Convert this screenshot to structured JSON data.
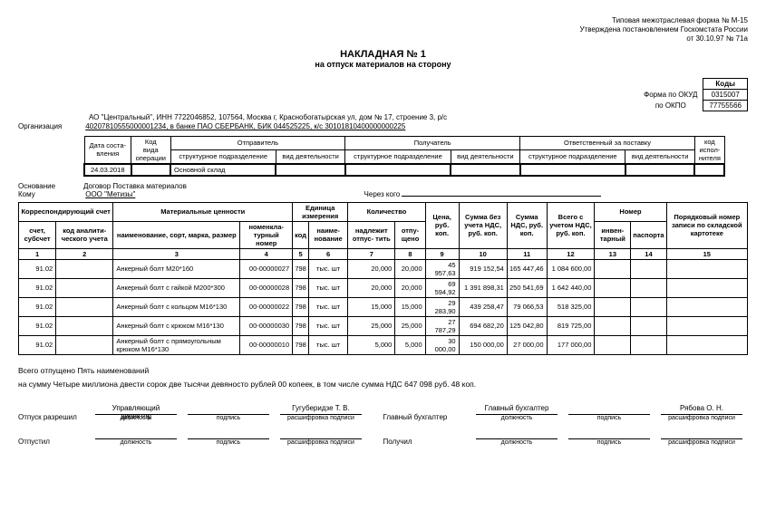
{
  "topRight": {
    "l1": "Типовая межотраслевая форма № М-15",
    "l2": "Утверждена постановлением Госкомстата России",
    "l3": "от 30.10.97 № 71а"
  },
  "title": "НАКЛАДНАЯ № 1",
  "subtitle": "на отпуск материалов на сторону",
  "codes": {
    "hdr": "Коды",
    "okudLabel": "Форма по ОКУД",
    "okud": "0315007",
    "okpoLabel": "по ОКПО",
    "okpo": "77755566"
  },
  "org": {
    "line1": "АО \"Центральный\", ИНН 7722046852, 107564, Москва г, Краснобогатырская ул, дом № 17, строение 3, р/с",
    "line2Label": "Организация",
    "line2": "40207810555000001234, в банке ПАО СБЕРБАНК, БИК 044525225, к/с 30101810400000000225"
  },
  "hdrTable": {
    "c1a": "Дата соста-",
    "c1b": "вления",
    "c2a": "Код",
    "c2b": "вида",
    "c2c": "операции",
    "grp1": "Отправитель",
    "grp2": "Получатель",
    "grp3": "Ответственный за поставку",
    "sub1": "структурное подразделение",
    "sub2": "вид деятельности",
    "c9a": "код",
    "c9b": "испол-",
    "c9c": "нителя",
    "date": "24.03.2018",
    "sender": "Основной склад"
  },
  "meta": {
    "osnLabel": "Основание",
    "osn": "Договор Поставка материалов",
    "komuLabel": "Кому",
    "komu": "ООО \"Метизы\"",
    "cherezLabel": "Через кого"
  },
  "cols": {
    "g1": "Корреспондирующий счет",
    "g1a": "счет, субсчет",
    "g1b": "код аналити- ческого учета",
    "g2": "Материальные ценности",
    "g2a": "наименование, сорт, марка, размер",
    "g2b": "номенкла- турный номер",
    "g3": "Единица измерения",
    "g3a": "код",
    "g3b": "наиме- нование",
    "g4": "Количество",
    "g4a": "надлежит отпус- тить",
    "g4b": "отпу- щено",
    "c9": "Цена, руб. коп.",
    "c10": "Сумма без учета НДС, руб. коп.",
    "c11": "Сумма НДС, руб. коп.",
    "c12": "Всего с учетом НДС, руб. коп.",
    "g13": "Номер",
    "g13a": "инвен- тарный",
    "g13b": "паспорта",
    "c15": "Порядковый номер записи по складской картотеке"
  },
  "nums": [
    "1",
    "2",
    "3",
    "4",
    "5",
    "6",
    "7",
    "8",
    "9",
    "10",
    "11",
    "12",
    "13",
    "14",
    "15"
  ],
  "rows": [
    {
      "acct": "91.02",
      "name": "Анкерный болт М20*160",
      "nom": "00-00000027",
      "code": "798",
      "unit": "тыс. шт",
      "q1": "20,000",
      "q2": "20,000",
      "price": "45 957,63",
      "sum": "919 152,54",
      "nds": "165 447,46",
      "total": "1 084 600,00"
    },
    {
      "acct": "91.02",
      "name": "Анкерный болт с гайкой М200*300",
      "nom": "00-00000028",
      "code": "798",
      "unit": "тыс. шт",
      "q1": "20,000",
      "q2": "20,000",
      "price": "69 594,92",
      "sum": "1 391 898,31",
      "nds": "250 541,69",
      "total": "1 642 440,00"
    },
    {
      "acct": "91.02",
      "name": "Анкерный болт с кольцом М16*130",
      "nom": "00-00000022",
      "code": "798",
      "unit": "тыс. шт",
      "q1": "15,000",
      "q2": "15,000",
      "price": "29 283,90",
      "sum": "439 258,47",
      "nds": "79 066,53",
      "total": "518 325,00"
    },
    {
      "acct": "91.02",
      "name": "Анкерный болт с крюком М16*130",
      "nom": "00-00000030",
      "code": "798",
      "unit": "тыс. шт",
      "q1": "25,000",
      "q2": "25,000",
      "price": "27 787,29",
      "sum": "694 682,20",
      "nds": "125 042,80",
      "total": "819 725,00"
    },
    {
      "acct": "91.02",
      "name": "Анкерный болт с прямоугольным крюком М16*130",
      "nom": "00-00000010",
      "code": "798",
      "unit": "тыс. шт",
      "q1": "5,000",
      "q2": "5,000",
      "price": "30 000,00",
      "sum": "150 000,00",
      "nds": "27 000,00",
      "total": "177 000,00"
    }
  ],
  "totals": {
    "l1": "Всего отпущено Пять  наименований",
    "l2": "на сумму Четыре миллиона двести сорок две тысячи девяносто рублей 00 копеек, в том числе сумма НДС 647 098 руб. 48 коп."
  },
  "sig": {
    "otpuskRazreshil": "Отпуск разрешил",
    "dolzh": "должность",
    "podpis": "подпись",
    "rasshifr": "расшифровка подписи",
    "uprDir1": "Управляющий",
    "uprDir2": "директор",
    "name1": "Гугуберидзе Т. В.",
    "glavBuh": "Главный бухгалтер",
    "glavBuh2": "Главный бухгалтер",
    "name2": "Рябова О. Н.",
    "otpustil": "Отпустил",
    "poluchil": "Получил"
  }
}
